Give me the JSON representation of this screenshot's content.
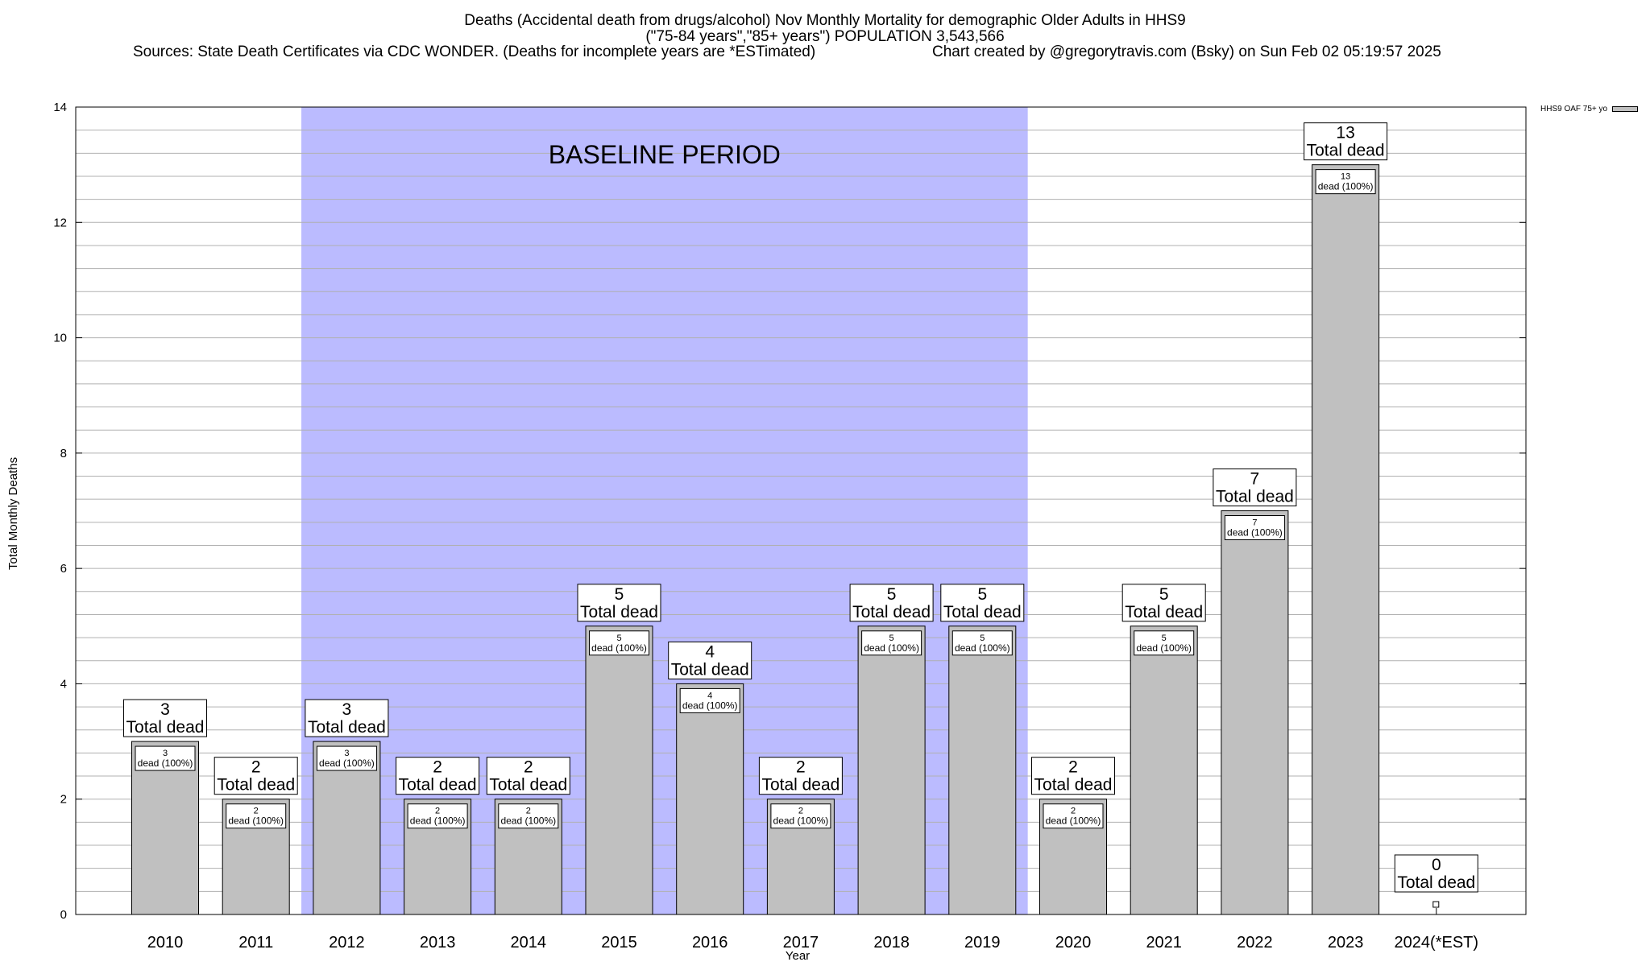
{
  "title_lines": [
    "Deaths (Accidental death from drugs/alcohol) Nov Monthly Mortality for demographic Older Adults in HHS9",
    "(\"75-84 years\",\"85+ years\") POPULATION 3,543,566"
  ],
  "sources_line": "Sources: State Death Certificates via CDC WONDER. (Deaths for incomplete years are *ESTimated)",
  "credit_line": "Chart created by @gregorytravis.com (Bsky) on Sun Feb 02 05:19:57 2025",
  "colors": {
    "bar": "#c0c0c0",
    "baseline": "#bbbbff",
    "grid": "#b0b0b0"
  },
  "chart_data": {
    "type": "bar",
    "title": "Deaths (Accidental death from drugs/alcohol) Nov Monthly Mortality for demographic Older Adults in HHS9",
    "xlabel": "Year",
    "ylabel": "Total Monthly Deaths",
    "ylim": [
      0,
      14
    ],
    "yticks": [
      "0",
      "2",
      "4",
      "6",
      "8",
      "10",
      "12",
      "14"
    ],
    "grid": true,
    "legend_position": "top-right",
    "categories": [
      "2010",
      "2011",
      "2012",
      "2013",
      "2014",
      "2015",
      "2016",
      "2017",
      "2018",
      "2019",
      "2020",
      "2021",
      "2022",
      "2023",
      "2024(*EST)"
    ],
    "series": [
      {
        "name": "HHS9 OAF 75+ yo",
        "values": [
          3,
          2,
          3,
          2,
          2,
          5,
          4,
          2,
          5,
          5,
          2,
          5,
          7,
          13,
          0
        ]
      }
    ],
    "top_labels": [
      "3",
      "2",
      "3",
      "2",
      "2",
      "5",
      "4",
      "2",
      "5",
      "5",
      "2",
      "5",
      "7",
      "13",
      "0"
    ],
    "top_caption": "Total dead",
    "inner_labels": [
      "3",
      "2",
      "3",
      "2",
      "2",
      "5",
      "4",
      "2",
      "5",
      "5",
      "2",
      "5",
      "7",
      "13"
    ],
    "inner_caption": "dead (100%)",
    "annotation": {
      "label": "BASELINE PERIOD",
      "from_category": "2012",
      "to_category": "2019"
    }
  }
}
